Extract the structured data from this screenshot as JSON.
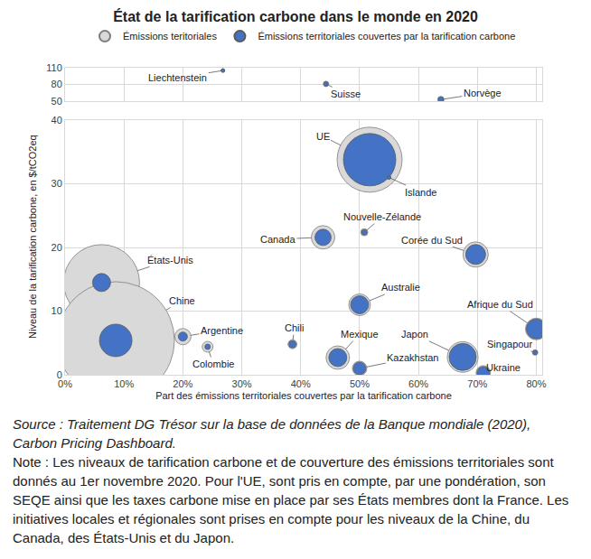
{
  "chart_data": {
    "type": "scatter",
    "title": "État de la tarification carbone dans le monde en 2020",
    "x_label": "Part des émissions territoriales couvertes par la tarification carbone",
    "y_label": "Niveau de la tarification carbone, en $/tCO2eq",
    "labels": [
      "Liechtenstein",
      "Suisse",
      "Norvège",
      "UE",
      "Islande",
      "Nouvelle-Zélande",
      "Canada",
      "Corée du Sud",
      "États-Unis",
      "Chine",
      "Argentine",
      "Colombie",
      "Chili",
      "Australie",
      "Mexique",
      "Kazakhstan",
      "Japon",
      "Singapour",
      "Afrique du Sud",
      "Ukraine"
    ],
    "x": [
      26.8,
      44.3,
      63.8,
      51.7,
      55,
      50.8,
      43.8,
      69.7,
      6.2,
      8.6,
      20,
      24.2,
      38.6,
      50,
      46.3,
      50,
      67.5,
      79.8,
      80,
      71
    ],
    "y": [
      105,
      81,
      53,
      33.8,
      31,
      22.4,
      21.6,
      18.9,
      14.5,
      5.4,
      6,
      4.4,
      4.8,
      11,
      2.7,
      1,
      2.8,
      3.5,
      7.2,
      0.3
    ],
    "series": [
      {
        "name": "Émissions teritoriales",
        "color": "#d9d9d9",
        "sizes": [
          3,
          26,
          35,
          3680,
          11,
          45,
          480,
          557,
          5010,
          12000,
          230,
          102,
          71,
          409,
          480,
          182,
          821,
          26,
          409,
          182
        ]
      },
      {
        "name": "Émissions territoriales couvertes par la tarification carbone",
        "color": "#4472c4",
        "sizes": [
          3,
          18,
          26,
          2390,
          6,
          26,
          230,
          344,
          284,
          920,
          71,
          26,
          45,
          284,
          284,
          139,
          639,
          18,
          344,
          139
        ]
      }
    ],
    "xlim": [
      0,
      81
    ],
    "xticks": [
      {
        "value": 0,
        "label": "0%"
      },
      {
        "value": 10,
        "label": "10%"
      },
      {
        "value": 20,
        "label": "20%"
      },
      {
        "value": 30,
        "label": "30%"
      },
      {
        "value": 40,
        "label": "40%"
      },
      {
        "value": 50,
        "label": "50%"
      },
      {
        "value": 60,
        "label": "60%"
      },
      {
        "value": 70,
        "label": "70%"
      },
      {
        "value": 80,
        "label": "80%"
      }
    ],
    "ylim": [
      0,
      40
    ],
    "yticks": [
      0,
      10,
      20,
      30,
      40
    ],
    "y2lim": [
      50,
      110
    ],
    "y2ticks": [
      50,
      80,
      110
    ],
    "grid": true,
    "legend": "top",
    "source": "Source : Traitement DG Trésor sur la base de données de la Banque mondiale (2020), Carbon Pricing Dashboard.",
    "note": "Note : Les niveaux de tarification carbone et de couverture des émissions territoriales sont donnés au 1er novembre 2020. Pour l'UE, sont pris en compte, par une pondération, son SEQE ainsi que les taxes carbone mise en place par ses États membres dont la France. Les initiatives locales et régionales sont prises en compte pour les niveaux de la Chine, du Canada, des États-Unis et du Japon."
  }
}
